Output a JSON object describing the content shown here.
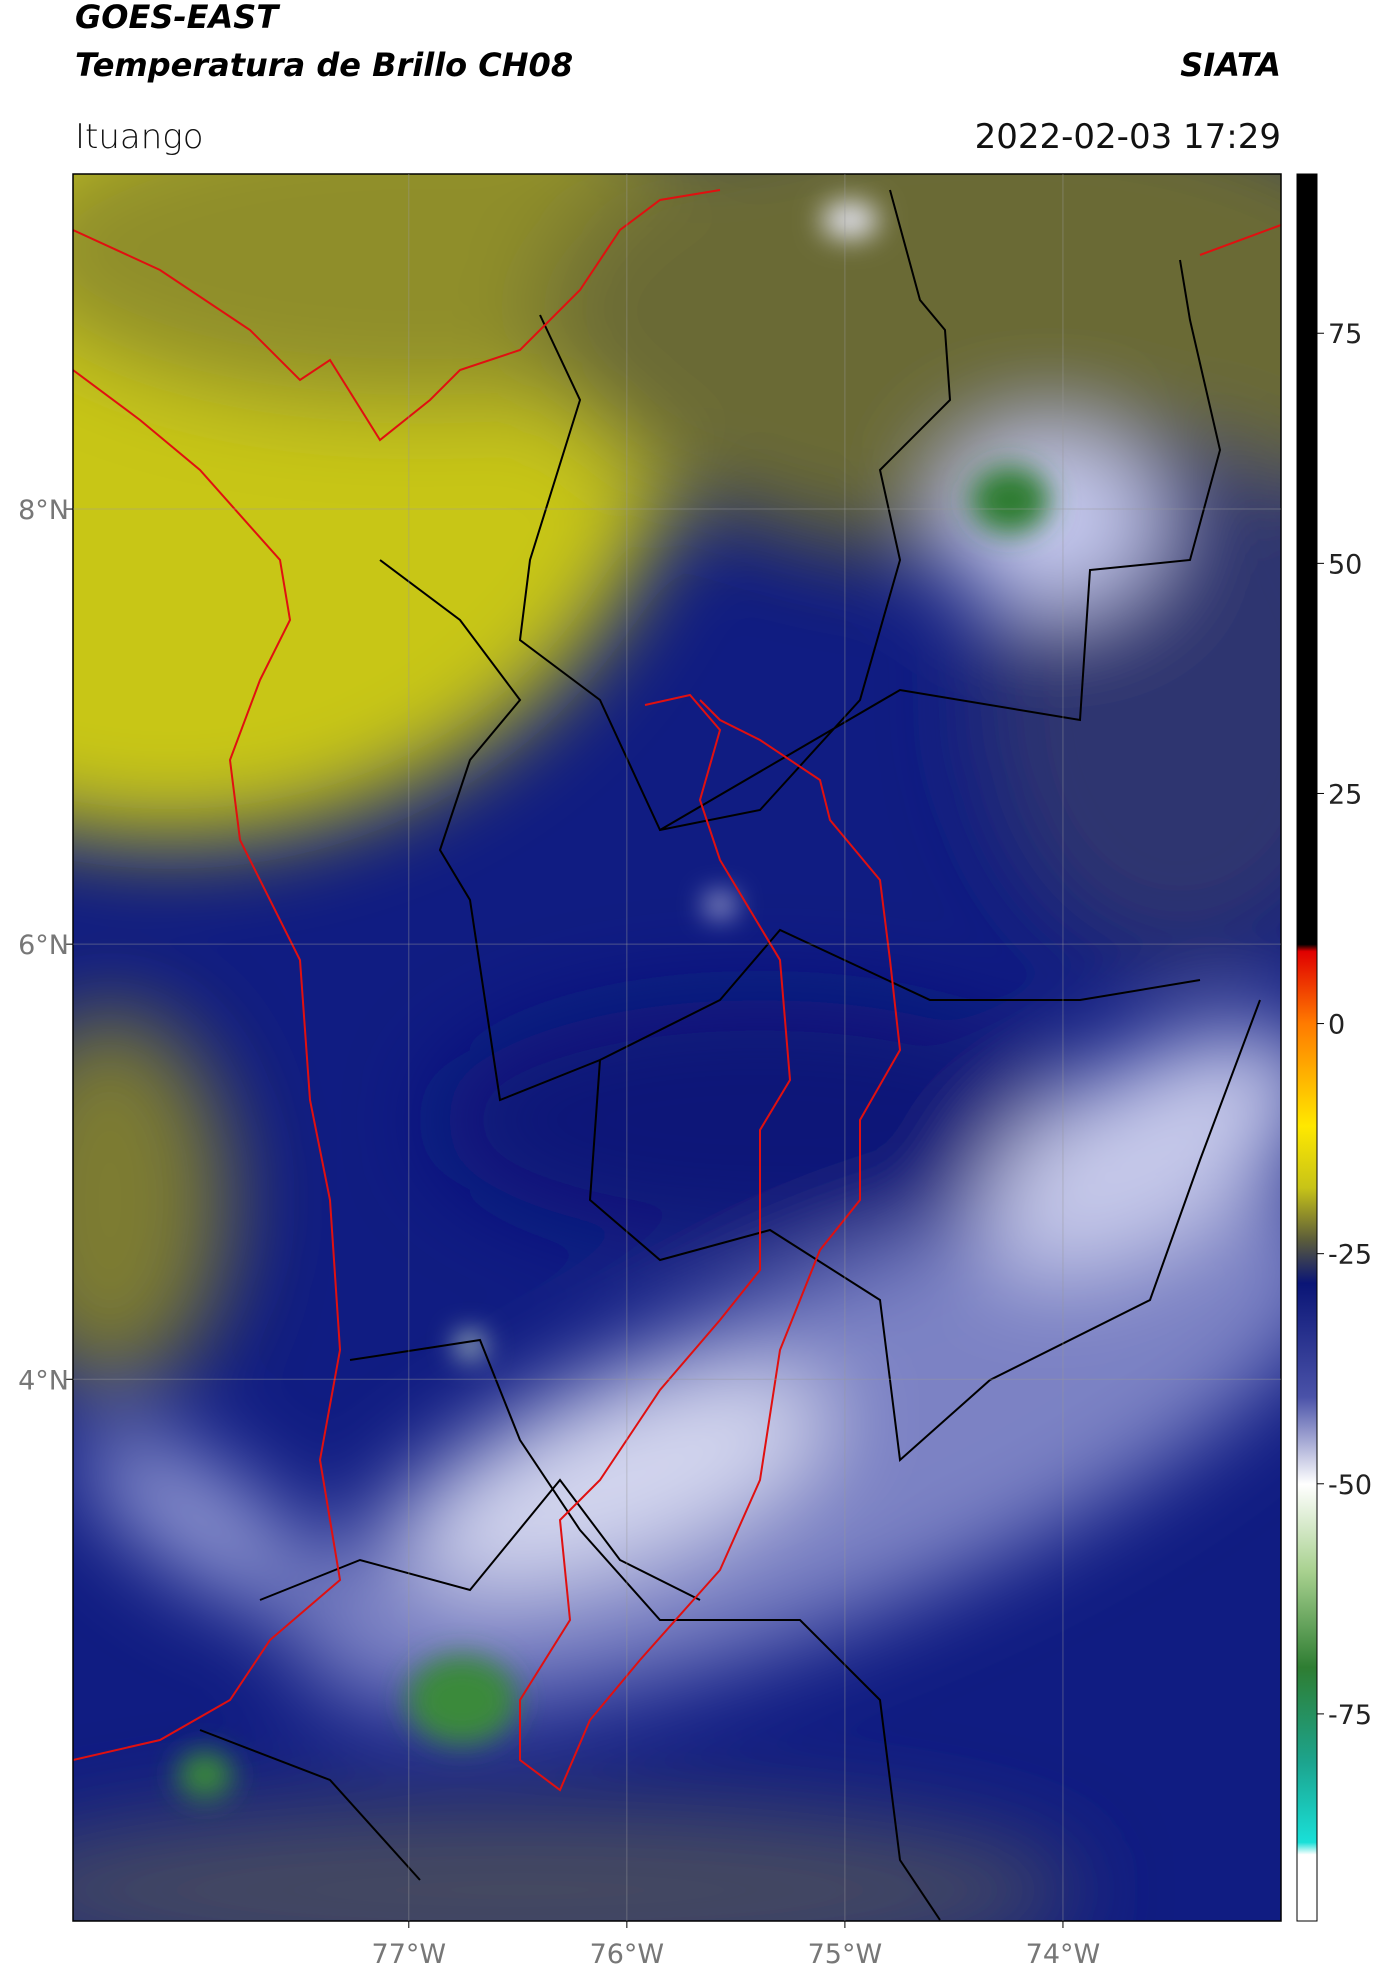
{
  "header": {
    "title_line1": "GOES-EAST",
    "title_line2": "Temperatura de Brillo CH08",
    "organization": "SIATA",
    "location": "Ituango",
    "timestamp": "2022-02-03 17:29"
  },
  "map": {
    "lon_range": [
      -78.54,
      -73.0
    ],
    "lat_range": [
      1.51,
      9.54
    ],
    "lat_ticks": [
      {
        "value": 8,
        "label": "8°N"
      },
      {
        "value": 6,
        "label": "6°N"
      },
      {
        "value": 4,
        "label": "4°N"
      }
    ],
    "lon_ticks": [
      {
        "value": -77,
        "label": "77°W"
      },
      {
        "value": -76,
        "label": "76°W"
      },
      {
        "value": -75,
        "label": "75°W"
      },
      {
        "value": -74,
        "label": "74°W"
      }
    ]
  },
  "colorbar": {
    "range": [
      -97.5,
      92.3
    ],
    "ticks": [
      75,
      50,
      25,
      0,
      -25,
      -50,
      -75
    ]
  }
}
